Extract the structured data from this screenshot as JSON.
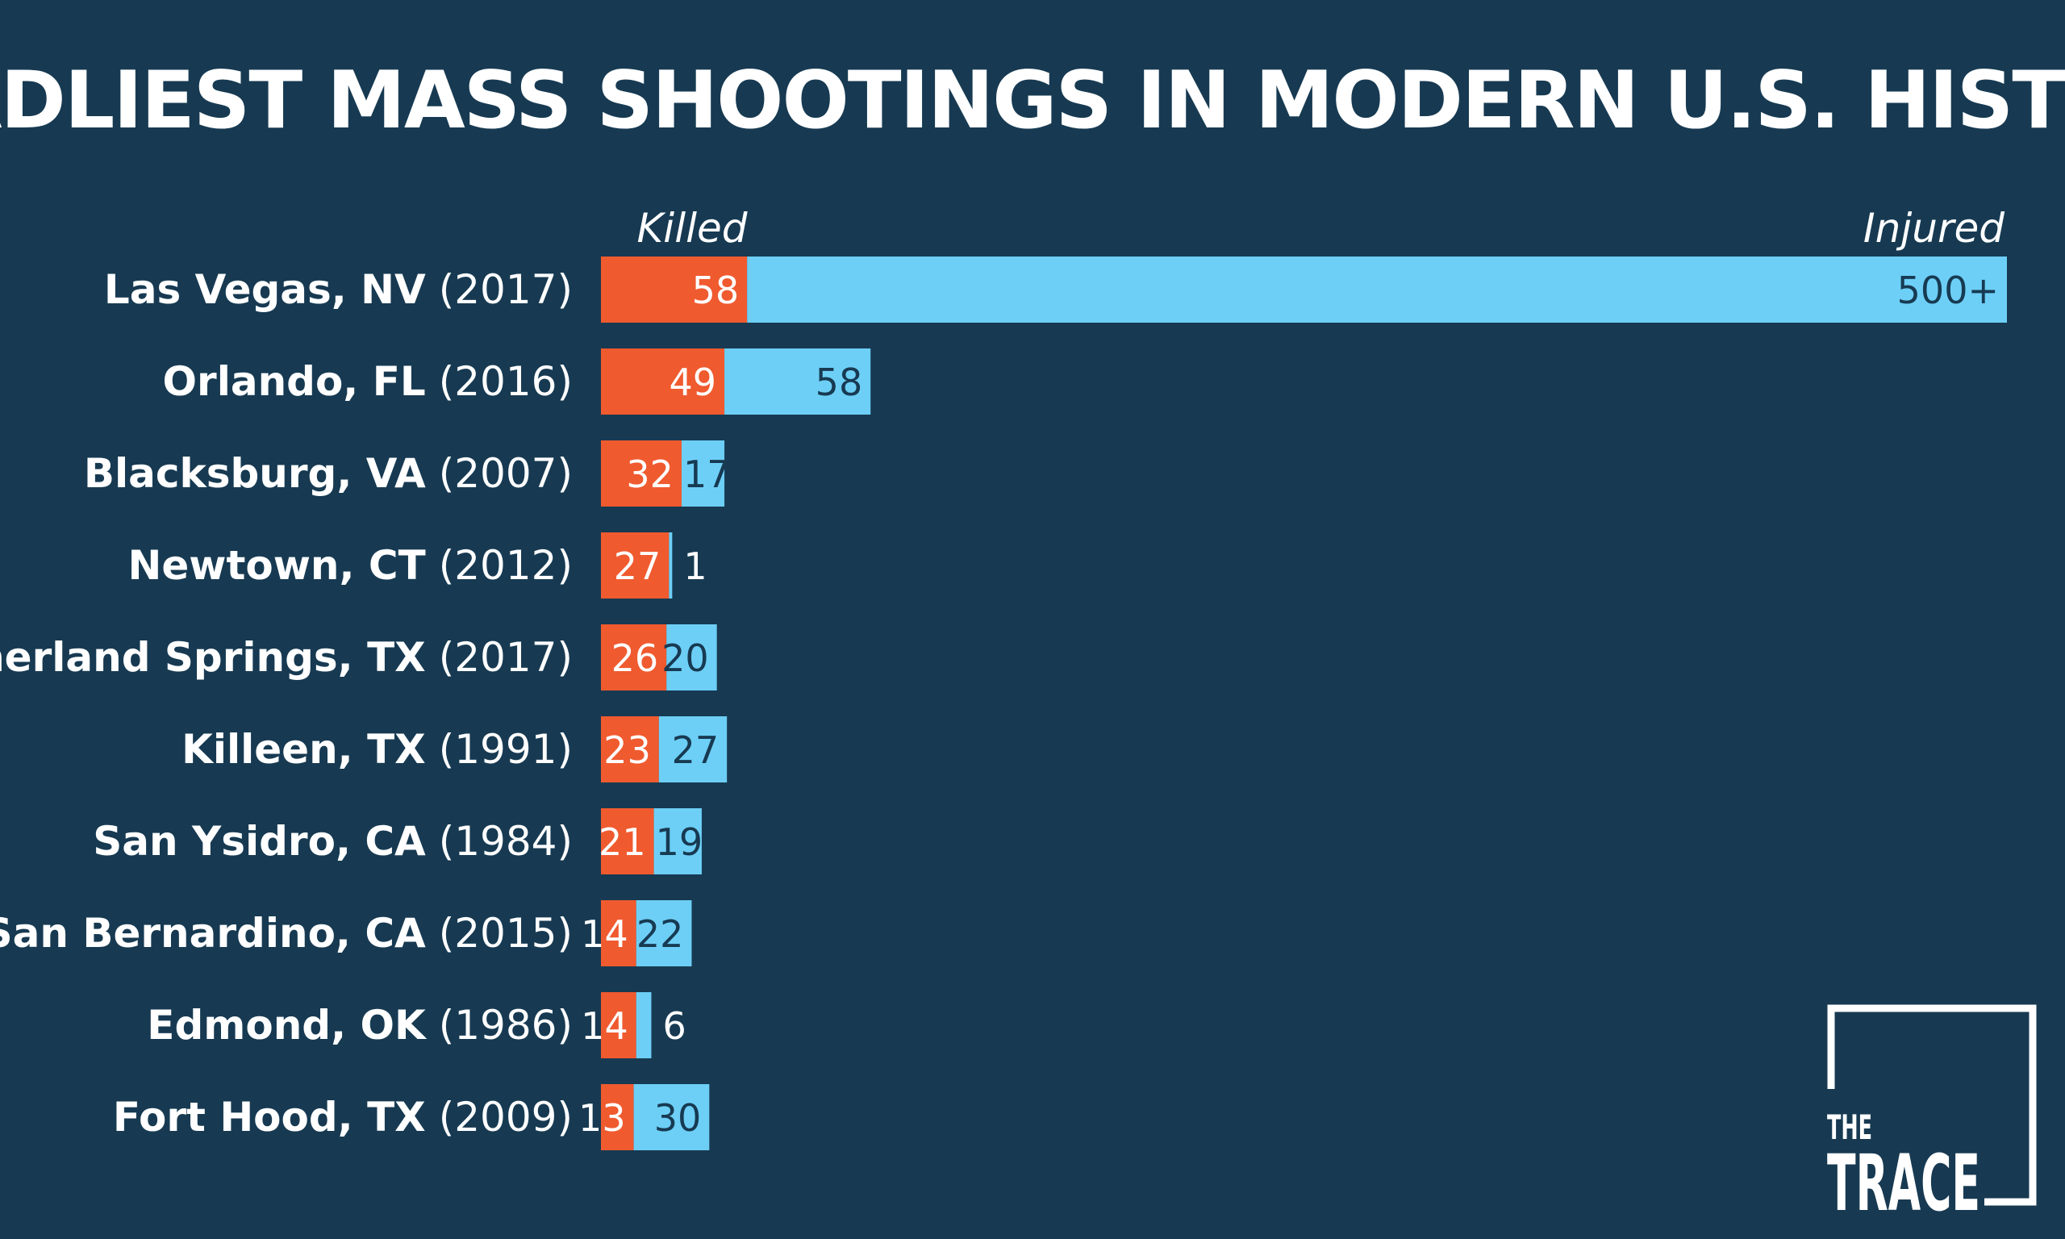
{
  "chart_data": {
    "type": "bar",
    "orientation": "horizontal",
    "stacked": true,
    "title": "DEADLIEST MASS SHOOTINGS IN MODERN U.S. HISTORY",
    "columns": {
      "killed": "Killed",
      "injured": "Injured"
    },
    "categories": [
      {
        "city": "Las Vegas, NV",
        "year": "(2017)"
      },
      {
        "city": "Orlando, FL",
        "year": "(2016)"
      },
      {
        "city": "Blacksburg, VA",
        "year": "(2007)"
      },
      {
        "city": "Newtown, CT",
        "year": "(2012)"
      },
      {
        "city": "Sutherland Springs, TX",
        "year": "(2017)"
      },
      {
        "city": "Killeen, TX",
        "year": "(1991)"
      },
      {
        "city": "San Ysidro, CA",
        "year": "(1984)"
      },
      {
        "city": "San Bernardino, CA",
        "year": "(2015)"
      },
      {
        "city": "Edmond, OK",
        "year": "(1986)"
      },
      {
        "city": "Fort Hood, TX",
        "year": "(2009)"
      }
    ],
    "series": [
      {
        "name": "Killed",
        "color": "#f05a2f",
        "values": [
          58,
          49,
          32,
          27,
          26,
          23,
          21,
          14,
          14,
          13
        ],
        "labels": [
          "58",
          "49",
          "32",
          "27",
          "26",
          "23",
          "21",
          "14",
          "14",
          "13"
        ]
      },
      {
        "name": "Injured",
        "color": "#6dcff6",
        "values": [
          500,
          58,
          17,
          1,
          20,
          27,
          19,
          22,
          6,
          30
        ],
        "labels": [
          "500+",
          "58",
          "17",
          "1",
          "20",
          "27",
          "19",
          "22",
          "6",
          "30"
        ]
      }
    ],
    "xlim": [
      0,
      558
    ]
  },
  "colors": {
    "background": "#173a52",
    "killed": "#f05a2f",
    "injured": "#6dcff6",
    "text": "#ffffff"
  },
  "logo": {
    "line1": "THE",
    "line2": "TRACE"
  }
}
